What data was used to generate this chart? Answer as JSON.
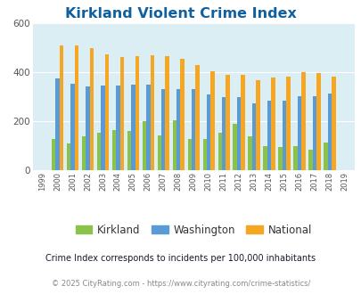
{
  "title": "Kirkland Violent Crime Index",
  "years": [
    1999,
    2000,
    2001,
    2002,
    2003,
    2004,
    2005,
    2006,
    2007,
    2008,
    2009,
    2010,
    2011,
    2012,
    2013,
    2014,
    2015,
    2016,
    2017,
    2018,
    2019
  ],
  "kirkland": [
    0,
    130,
    110,
    140,
    155,
    165,
    160,
    200,
    145,
    205,
    130,
    130,
    155,
    190,
    140,
    100,
    95,
    100,
    85,
    115,
    0
  ],
  "washington": [
    0,
    375,
    355,
    345,
    348,
    348,
    350,
    350,
    333,
    333,
    333,
    310,
    298,
    300,
    275,
    285,
    285,
    305,
    305,
    315,
    0
  ],
  "national": [
    0,
    510,
    510,
    498,
    475,
    463,
    468,
    472,
    467,
    455,
    430,
    405,
    390,
    390,
    368,
    378,
    383,
    400,
    398,
    383,
    0
  ],
  "kirkland_color": "#8bc34a",
  "washington_color": "#5b9bd5",
  "national_color": "#f5a623",
  "bg_color": "#daeef3",
  "title_color": "#1060a0",
  "subtitle_color": "#1a1a2e",
  "footer_color": "#888888",
  "ylim": [
    0,
    600
  ],
  "yticks": [
    0,
    200,
    400,
    600
  ],
  "subtitle": "Crime Index corresponds to incidents per 100,000 inhabitants",
  "footer": "© 2025 CityRating.com - https://www.cityrating.com/crime-statistics/",
  "legend_labels": [
    "Kirkland",
    "Washington",
    "National"
  ]
}
